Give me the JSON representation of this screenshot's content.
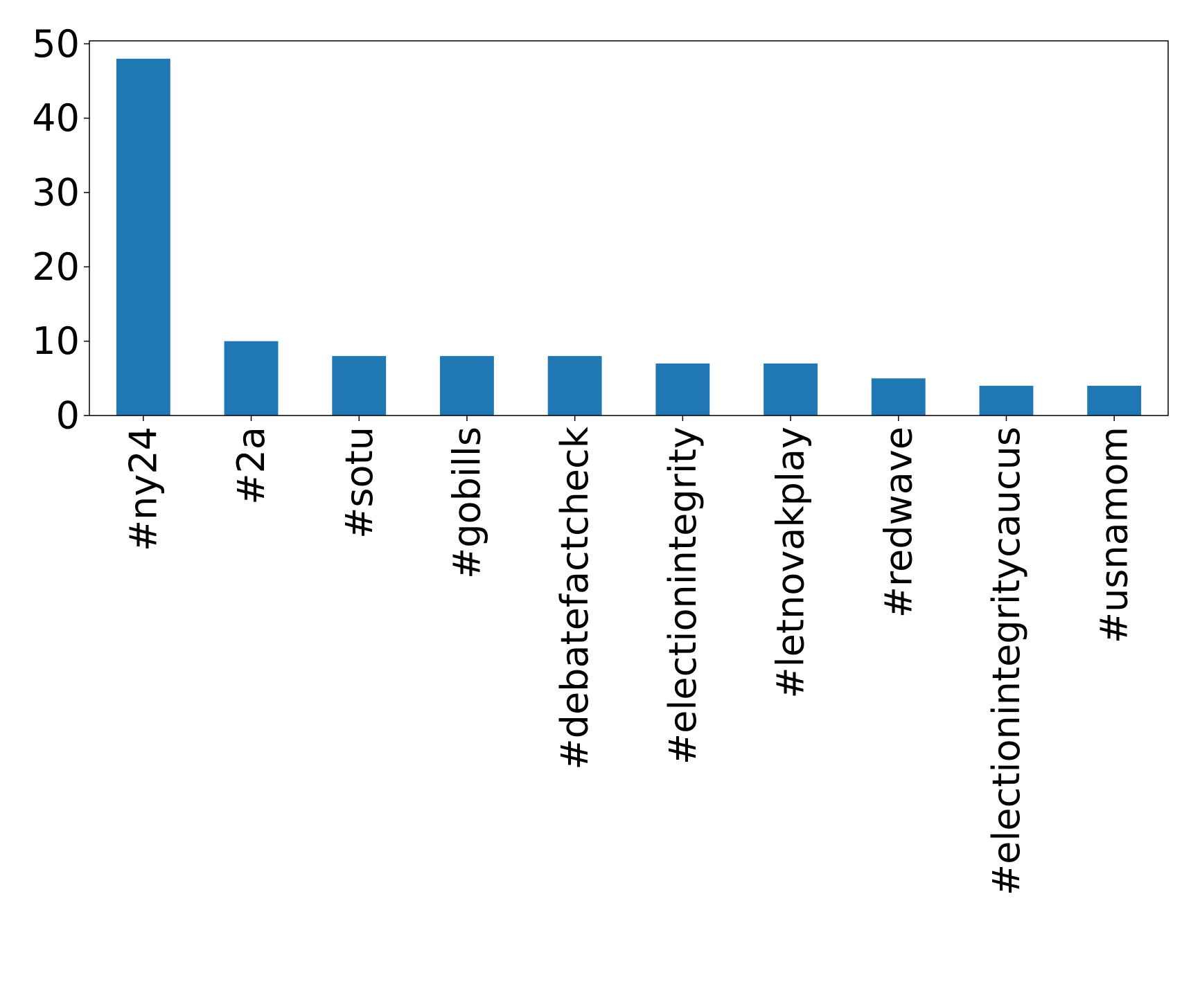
{
  "chart_data": {
    "type": "bar",
    "title": "",
    "xlabel": "",
    "ylabel": "",
    "categories": [
      "#ny24",
      "#2a",
      "#sotu",
      "#gobills",
      "#debatefactcheck",
      "#electionintegrity",
      "#letnovakplay",
      "#redwave",
      "#electionintegritycaucus",
      "#usnamom"
    ],
    "values": [
      48,
      10,
      8,
      8,
      8,
      7,
      7,
      5,
      4,
      4
    ],
    "ylim": [
      0,
      50.4
    ],
    "yticks": [
      0,
      10,
      20,
      30,
      40,
      50
    ],
    "grid": false,
    "legend": "none",
    "colors": {
      "bar": "#1f77b4",
      "axis": "#000000",
      "background": "#ffffff"
    }
  }
}
